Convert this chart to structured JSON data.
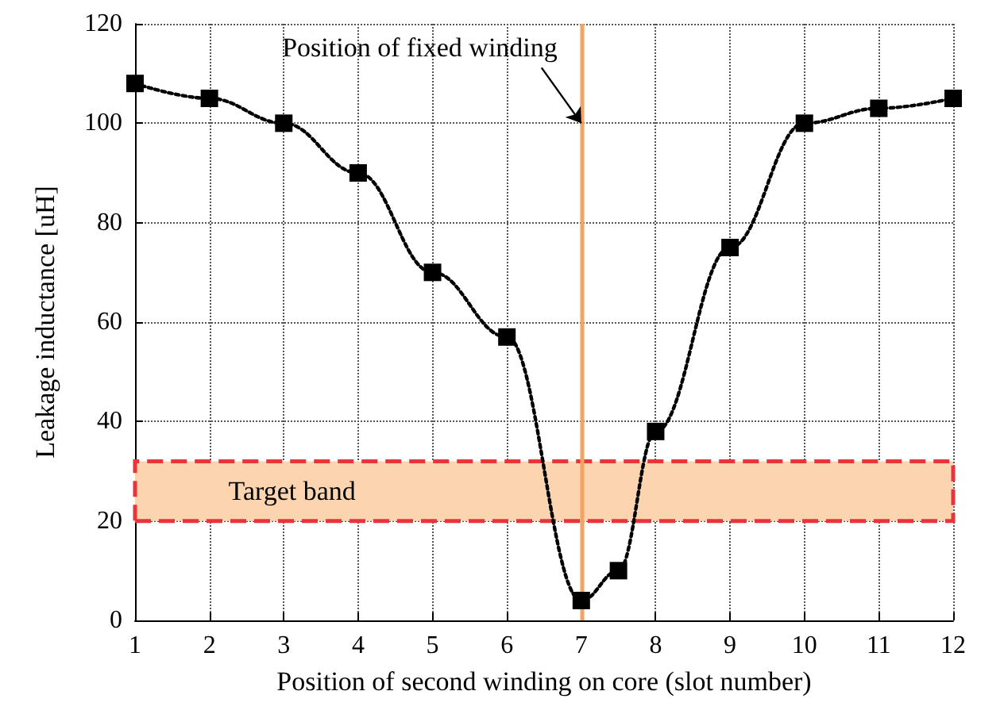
{
  "chart_data": {
    "type": "line",
    "xlabel": "Position of second winding on core (slot number)",
    "ylabel": "Leakage inductance [uH]",
    "x": [
      1,
      2,
      3,
      4,
      5,
      6,
      7,
      7.5,
      8,
      9,
      10,
      11,
      12
    ],
    "series": [
      {
        "color": "#000000",
        "values": [
          108,
          105,
          100,
          90,
          70,
          57,
          4,
          10,
          38,
          75,
          100,
          103,
          105
        ]
      }
    ],
    "xlim": [
      1,
      12
    ],
    "xticks": [
      1,
      2,
      3,
      4,
      5,
      6,
      7,
      8,
      9,
      10,
      11,
      12
    ],
    "ylim": [
      0,
      120
    ],
    "yticks": [
      0,
      20,
      40,
      60,
      80,
      100,
      120
    ],
    "grid": true,
    "marker": "square",
    "line_style": "dotted",
    "ref_lines": [
      {
        "axis": "x",
        "value": 7,
        "color": "#f4a460",
        "line_style": "solid"
      }
    ],
    "bands": [
      {
        "axis": "y",
        "from": 20,
        "to": 32,
        "label": "Target band",
        "color": "#fcd5b0"
      }
    ],
    "annotations": [
      {
        "text": "Position of fixed winding",
        "x": 7,
        "y": 100
      }
    ]
  }
}
